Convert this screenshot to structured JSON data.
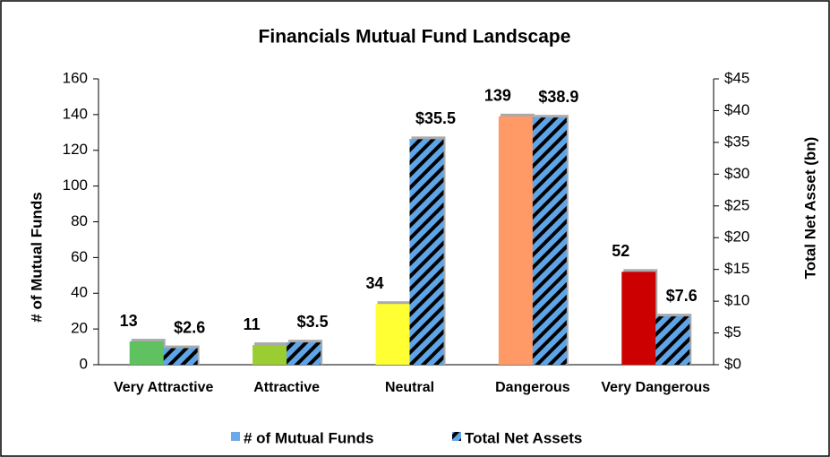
{
  "chart_data": {
    "type": "bar",
    "title": "Financials Mutual Fund Landscape",
    "y_label": "# of Mutual Funds",
    "y2_label": "Total Net Asset (bn)",
    "categories": [
      "Very Attractive",
      "Attractive",
      "Neutral",
      "Dangerous",
      "Very Dangerous"
    ],
    "series": [
      {
        "name": "# of Mutual Funds",
        "color": "#6aa9ea",
        "bar_colors": [
          "#5fc15f",
          "#9acd32",
          "#ffff33",
          "#ff9966",
          "#cc0000"
        ],
        "values": [
          13,
          11,
          34,
          139,
          52
        ]
      },
      {
        "name": "Total Net Assets",
        "color": "#5ea5e8",
        "axis": "y2",
        "values": [
          2.6,
          3.5,
          35.5,
          38.9,
          7.6
        ],
        "value_labels": [
          "$2.6",
          "$3.5",
          "$35.5",
          "$38.9",
          "$7.6"
        ]
      }
    ],
    "ylim": [
      0,
      160
    ],
    "yticks": [
      0,
      20,
      40,
      60,
      80,
      100,
      120,
      140,
      160
    ],
    "y2lim": [
      0,
      45
    ],
    "y2ticks": [
      {
        "value": 0,
        "label": "$0"
      },
      {
        "value": 5,
        "label": "$5"
      },
      {
        "value": 10,
        "label": "$10"
      },
      {
        "value": 15,
        "label": "$15"
      },
      {
        "value": 20,
        "label": "$20"
      },
      {
        "value": 25,
        "label": "$25"
      },
      {
        "value": 30,
        "label": "$30"
      },
      {
        "value": 35,
        "label": "$35"
      },
      {
        "value": 40,
        "label": "$40"
      },
      {
        "value": 45,
        "label": "$45"
      }
    ],
    "grid": false,
    "legend": "bottom"
  }
}
